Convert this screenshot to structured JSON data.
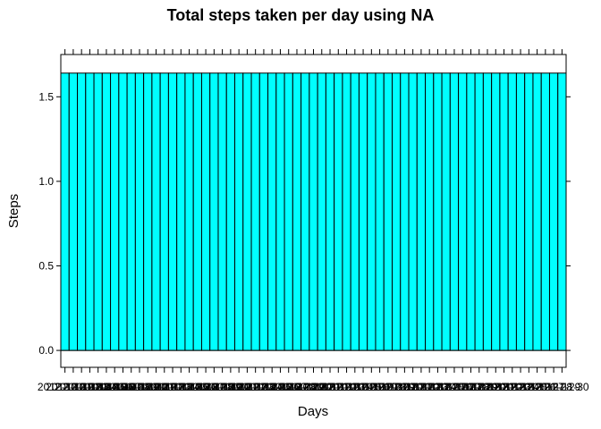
{
  "chart_data": {
    "type": "bar",
    "title": "Total steps taken per day using NA",
    "xlabel": "Days",
    "ylabel": "Steps",
    "ylim": [
      -0.1,
      1.75
    ],
    "y_ticks": [
      0.0,
      0.5,
      1.0,
      1.5
    ],
    "y_tick_labels": [
      "0.0",
      "0.5",
      "1.0",
      "1.5"
    ],
    "baseline": 0,
    "grid": false,
    "legend": "none",
    "categories": [
      "2012-10-01",
      "2012-10-02",
      "2012-10-03",
      "2012-10-04",
      "2012-10-05",
      "2012-10-06",
      "2012-10-07",
      "2012-10-08",
      "2012-10-09",
      "2012-10-10",
      "2012-10-11",
      "2012-10-12",
      "2012-10-13",
      "2012-10-14",
      "2012-10-15",
      "2012-10-16",
      "2012-10-17",
      "2012-10-18",
      "2012-10-19",
      "2012-10-20",
      "2012-10-21",
      "2012-10-22",
      "2012-10-23",
      "2012-10-24",
      "2012-10-25",
      "2012-10-26",
      "2012-10-27",
      "2012-10-28",
      "2012-10-29",
      "2012-10-30",
      "2012-10-31",
      "2012-11-01",
      "2012-11-02",
      "2012-11-03",
      "2012-11-04",
      "2012-11-05",
      "2012-11-06",
      "2012-11-07",
      "2012-11-08",
      "2012-11-09",
      "2012-11-10",
      "2012-11-11",
      "2012-11-12",
      "2012-11-13",
      "2012-11-14",
      "2012-11-15",
      "2012-11-16",
      "2012-11-17",
      "2012-11-18",
      "2012-11-19",
      "2012-11-20",
      "2012-11-21",
      "2012-11-22",
      "2012-11-23",
      "2012-11-24",
      "2012-11-25",
      "2012-11-26",
      "2012-11-27",
      "2012-11-28",
      "2012-11-29",
      "2012-11-30"
    ],
    "values": [
      1.64,
      1.64,
      1.64,
      1.64,
      1.64,
      1.64,
      1.64,
      1.64,
      1.64,
      1.64,
      1.64,
      1.64,
      1.64,
      1.64,
      1.64,
      1.64,
      1.64,
      1.64,
      1.64,
      1.64,
      1.64,
      1.64,
      1.64,
      1.64,
      1.64,
      1.64,
      1.64,
      1.64,
      1.64,
      1.64,
      1.64,
      1.64,
      1.64,
      1.64,
      1.64,
      1.64,
      1.64,
      1.64,
      1.64,
      1.64,
      1.64,
      1.64,
      1.64,
      1.64,
      1.64,
      1.64,
      1.64,
      1.64,
      1.64,
      1.64,
      1.64,
      1.64,
      1.64,
      1.64,
      1.64,
      1.64,
      1.64,
      1.64,
      1.64,
      1.64,
      1.64
    ],
    "colors": {
      "bar_fill": "#00ffff",
      "bar_stroke": "#000000",
      "axis": "#000000",
      "background": "#ffffff"
    }
  }
}
